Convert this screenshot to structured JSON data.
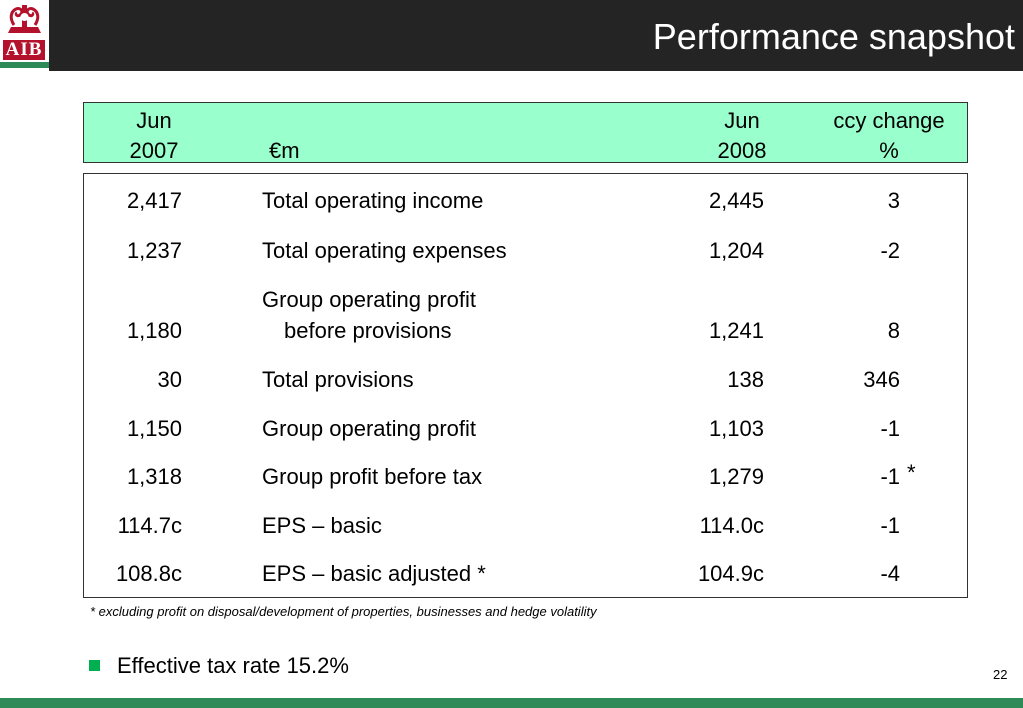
{
  "brand": {
    "logo_text": "AIB"
  },
  "slide": {
    "title": "Performance snapshot",
    "page_number": "22"
  },
  "table": {
    "header": {
      "col1": {
        "line1": "Jun",
        "line2": "2007"
      },
      "col2": {
        "line1": "",
        "line2": "€m"
      },
      "col3": {
        "line1": "Jun",
        "line2": "2008"
      },
      "col4": {
        "line1": "ccy change",
        "line2": "%"
      }
    },
    "rows": [
      {
        "jun2007": "2,417",
        "label": "Total operating income",
        "label2": "",
        "jun2008": "2,445",
        "change": "3"
      },
      {
        "jun2007": "1,237",
        "label": "Total operating expenses",
        "label2": "",
        "jun2008": "1,204",
        "change": "-2"
      },
      {
        "jun2007": "1,180",
        "label": "Group operating profit",
        "label2": "before provisions",
        "jun2008": "1,241",
        "change": "8"
      },
      {
        "jun2007": "30",
        "label": "Total provisions",
        "label2": "",
        "jun2008": "138",
        "change": "346"
      },
      {
        "jun2007": "1,150",
        "label": "Group operating profit",
        "label2": "",
        "jun2008": "1,103",
        "change": "-1"
      },
      {
        "jun2007": "1,318",
        "label": "Group profit before tax",
        "label2": "",
        "jun2008": "1,279",
        "change": "-1",
        "change_note": "*"
      },
      {
        "jun2007": "114.7c",
        "label": "EPS – basic",
        "label2": "",
        "jun2008": "114.0c",
        "change": "-1"
      },
      {
        "jun2007": "108.8c",
        "label": "EPS – basic adjusted *",
        "label2": "",
        "jun2008": "104.9c",
        "change": "-4"
      }
    ]
  },
  "footnote": "* excluding profit on disposal/development of properties, businesses and hedge volatility",
  "bullets": [
    "Effective tax rate 15.2%"
  ],
  "colors": {
    "header_fill": "#99ffcc",
    "title_bar": "#242424",
    "accent_green": "#2e8b57",
    "bullet": "#00b050",
    "logo_red": "#b4122c"
  }
}
